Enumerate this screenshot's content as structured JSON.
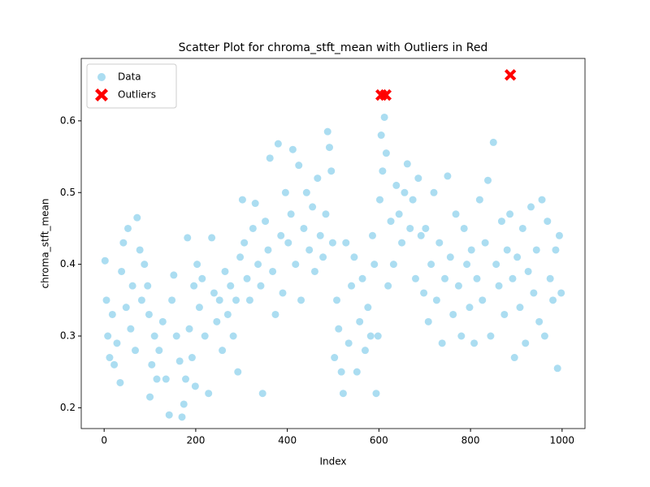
{
  "chart_data": {
    "type": "scatter",
    "title": "Scatter Plot for chroma_stft_mean with Outliers in Red",
    "x_label": "Index",
    "y_label": "chroma_stft_mean",
    "xlim": [
      -50,
      1050
    ],
    "ylim": [
      0.171,
      0.687
    ],
    "xticks": [
      0,
      200,
      400,
      600,
      800,
      1000
    ],
    "yticks": [
      0.2,
      0.3,
      0.4,
      0.5,
      0.6
    ],
    "grid": false,
    "legend": "upper-left",
    "series": [
      {
        "name": "Data",
        "color": "#87ceeb",
        "marker": "circle",
        "x": [
          2,
          5,
          8,
          12,
          18,
          22,
          28,
          35,
          38,
          42,
          48,
          52,
          58,
          62,
          68,
          72,
          78,
          82,
          88,
          95,
          98,
          100,
          104,
          110,
          115,
          120,
          128,
          135,
          142,
          148,
          152,
          158,
          165,
          170,
          174,
          178,
          182,
          186,
          192,
          196,
          199,
          203,
          208,
          214,
          220,
          228,
          235,
          240,
          246,
          252,
          258,
          264,
          270,
          276,
          282,
          288,
          292,
          297,
          302,
          306,
          312,
          318,
          325,
          330,
          336,
          342,
          346,
          352,
          358,
          362,
          368,
          374,
          380,
          386,
          390,
          396,
          402,
          408,
          412,
          418,
          425,
          430,
          436,
          442,
          448,
          455,
          460,
          466,
          472,
          478,
          484,
          488,
          492,
          496,
          499,
          503,
          508,
          512,
          518,
          522,
          528,
          534,
          540,
          546,
          552,
          558,
          564,
          570,
          576,
          582,
          586,
          590,
          594,
          598,
          602,
          605,
          608,
          612,
          616,
          620,
          626,
          632,
          638,
          644,
          650,
          656,
          662,
          668,
          674,
          680,
          686,
          692,
          698,
          702,
          708,
          714,
          720,
          726,
          732,
          738,
          744,
          750,
          756,
          762,
          768,
          774,
          780,
          786,
          792,
          798,
          802,
          808,
          814,
          820,
          826,
          832,
          838,
          844,
          850,
          856,
          862,
          868,
          874,
          880,
          886,
          892,
          896,
          902,
          908,
          914,
          920,
          926,
          932,
          938,
          944,
          950,
          956,
          962,
          968,
          974,
          980,
          986,
          990,
          994,
          998
        ],
        "values": [
          0.405,
          0.35,
          0.3,
          0.27,
          0.33,
          0.26,
          0.29,
          0.235,
          0.39,
          0.43,
          0.34,
          0.45,
          0.31,
          0.37,
          0.28,
          0.465,
          0.42,
          0.35,
          0.4,
          0.37,
          0.33,
          0.215,
          0.26,
          0.3,
          0.24,
          0.28,
          0.32,
          0.24,
          0.19,
          0.35,
          0.385,
          0.3,
          0.265,
          0.187,
          0.205,
          0.24,
          0.437,
          0.31,
          0.27,
          0.37,
          0.23,
          0.4,
          0.34,
          0.38,
          0.3,
          0.22,
          0.437,
          0.36,
          0.32,
          0.35,
          0.28,
          0.39,
          0.33,
          0.37,
          0.3,
          0.35,
          0.25,
          0.41,
          0.49,
          0.43,
          0.38,
          0.35,
          0.45,
          0.485,
          0.4,
          0.37,
          0.22,
          0.46,
          0.42,
          0.548,
          0.39,
          0.33,
          0.568,
          0.44,
          0.36,
          0.5,
          0.43,
          0.47,
          0.56,
          0.4,
          0.538,
          0.35,
          0.45,
          0.5,
          0.42,
          0.48,
          0.39,
          0.52,
          0.44,
          0.41,
          0.47,
          0.585,
          0.563,
          0.53,
          0.43,
          0.27,
          0.35,
          0.31,
          0.25,
          0.22,
          0.43,
          0.29,
          0.37,
          0.41,
          0.25,
          0.32,
          0.38,
          0.28,
          0.34,
          0.3,
          0.44,
          0.4,
          0.22,
          0.3,
          0.49,
          0.58,
          0.53,
          0.605,
          0.555,
          0.37,
          0.46,
          0.4,
          0.51,
          0.47,
          0.43,
          0.5,
          0.54,
          0.45,
          0.49,
          0.38,
          0.52,
          0.44,
          0.36,
          0.45,
          0.32,
          0.4,
          0.5,
          0.35,
          0.43,
          0.29,
          0.38,
          0.523,
          0.41,
          0.33,
          0.47,
          0.37,
          0.3,
          0.45,
          0.4,
          0.34,
          0.42,
          0.29,
          0.38,
          0.49,
          0.35,
          0.43,
          0.517,
          0.3,
          0.57,
          0.4,
          0.37,
          0.46,
          0.33,
          0.42,
          0.47,
          0.38,
          0.27,
          0.41,
          0.34,
          0.45,
          0.29,
          0.39,
          0.48,
          0.36,
          0.42,
          0.32,
          0.49,
          0.3,
          0.46,
          0.38,
          0.35,
          0.42,
          0.255,
          0.44,
          0.36
        ]
      },
      {
        "name": "Outliers",
        "color": "#ff0000",
        "marker": "x",
        "x": [
          605,
          615,
          887
        ],
        "values": [
          0.636,
          0.636,
          0.664
        ]
      }
    ]
  }
}
